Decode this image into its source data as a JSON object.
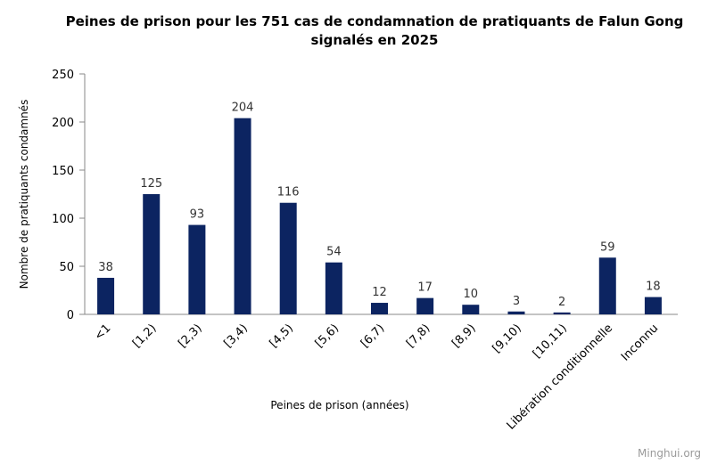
{
  "chart_data": {
    "type": "bar",
    "title": "Peines de prison pour les 751 cas de condamnation de pratiquants de Falun Gong signalés en 2025",
    "title_lines": [
      "Peines de prison pour les 751 cas de condamnation de pratiquants de Falun Gong",
      "signalés en 2025"
    ],
    "xlabel": "Peines de prison (années)",
    "ylabel": "Nombre  de pratiquants condamnés",
    "categories": [
      "<1",
      "[1,2)",
      "[2,3)",
      "[3,4)",
      "[4,5)",
      "[5,6)",
      "[6,7)",
      "[7,8)",
      "[8,9)",
      "[9,10)",
      "[10,11)",
      "Libération conditionnelle",
      "Inconnu"
    ],
    "values": [
      38,
      125,
      93,
      204,
      116,
      54,
      12,
      17,
      10,
      3,
      2,
      59,
      18
    ],
    "ylim": [
      0,
      250
    ],
    "yticks": [
      0,
      50,
      100,
      150,
      200,
      250
    ],
    "grid": false,
    "legend": "none",
    "bar_color": "#0c2461",
    "data_label_color": "#333333"
  },
  "watermark": "Minghui.org"
}
